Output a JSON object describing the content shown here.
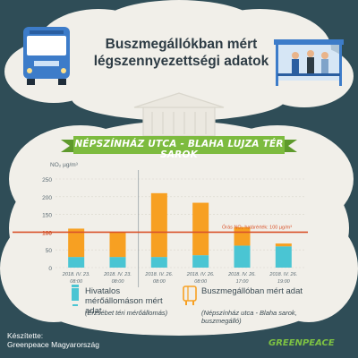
{
  "header": {
    "title": "Buszmegállókban mért légszennyezettségi adatok"
  },
  "ribbon": {
    "label": "NÉPSZÍNHÁZ UTCA - BLAHA LUJZA TÉR SAROK"
  },
  "colors": {
    "background": "#2f4d57",
    "official": "#4ac5d3",
    "busstop": "#f7a022",
    "limit": "#d9532b",
    "ribbon": "#7dbb3f"
  },
  "chart_data": {
    "type": "bar",
    "stacked": true,
    "ylabel": "NO₂ µg/m³",
    "ylim": [
      0,
      250
    ],
    "yticks": [
      0,
      50,
      100,
      150,
      200,
      250
    ],
    "categories": [
      [
        "2018. IV. 23.",
        "08:00"
      ],
      [
        "2018. IV. 23.",
        "08:00"
      ],
      [
        "2018. IV. 26.",
        "08:00"
      ],
      [
        "2018. IV. 26.",
        "08:00"
      ],
      [
        "2018. IV. 26.",
        "17:00"
      ],
      [
        "2018. IV. 26.",
        "19:00"
      ]
    ],
    "series": [
      {
        "key": "official",
        "values": [
          30,
          30,
          30,
          35,
          62,
          60
        ]
      },
      {
        "key": "busstop",
        "values": [
          80,
          70,
          180,
          148,
          52,
          8
        ]
      }
    ],
    "limit": {
      "value": 100,
      "label": "Órás NO₂ határérték: 100 µg/m³"
    },
    "legend": {
      "official": {
        "label": "Hivatalos mérőállomáson mért adat",
        "sub": "(Erzsébet téri mérőállomás)"
      },
      "busstop": {
        "label": "Buszmegállóban mért adat",
        "sub": "(Népszínház utca - Blaha sarok, buszmegálló)"
      }
    }
  },
  "footer": {
    "credit_label": "Készítette:",
    "credit_name": "Greenpeace Magyarország",
    "brand": "GREENPEACE"
  }
}
